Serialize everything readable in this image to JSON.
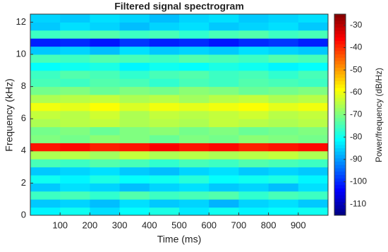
{
  "chart_data": {
    "type": "heatmap",
    "title": "Filtered signal spectrogram",
    "x_label": "Time (ms)",
    "y_label": "Frequency (kHz)",
    "colorbar_label": "Power/frequency (dB/Hz)",
    "colormap": "jet",
    "x": [
      50,
      150,
      250,
      350,
      450,
      550,
      650,
      750,
      850,
      950
    ],
    "y": [
      0.25,
      0.75,
      1.25,
      1.75,
      2.25,
      2.75,
      3.25,
      3.75,
      4.25,
      4.75,
      5.25,
      5.75,
      6.25,
      6.75,
      7.25,
      7.75,
      8.25,
      8.75,
      9.25,
      9.75,
      10.25,
      10.75,
      11.25,
      11.75,
      12.25
    ],
    "z": [
      [
        -82,
        -80,
        -84,
        -81,
        -79,
        -83,
        -80,
        -82,
        -81,
        -80
      ],
      [
        -86,
        -85,
        -87,
        -84,
        -86,
        -85,
        -88,
        -85,
        -84,
        -86
      ],
      [
        -76,
        -75,
        -77,
        -74,
        -76,
        -75,
        -74,
        -77,
        -75,
        -76
      ],
      [
        -86,
        -84,
        -85,
        -87,
        -85,
        -84,
        -86,
        -85,
        -87,
        -84
      ],
      [
        -80,
        -82,
        -79,
        -81,
        -80,
        -78,
        -81,
        -80,
        -79,
        -82
      ],
      [
        -86,
        -85,
        -84,
        -86,
        -87,
        -85,
        -84,
        -86,
        -85,
        -86
      ],
      [
        -75,
        -76,
        -74,
        -75,
        -77,
        -75,
        -76,
        -74,
        -75,
        -76
      ],
      [
        -66,
        -65,
        -67,
        -64,
        -66,
        -65,
        -66,
        -65,
        -64,
        -66
      ],
      [
        -38,
        -37,
        -39,
        -38,
        -36,
        -38,
        -37,
        -39,
        -38,
        -37
      ],
      [
        -70,
        -71,
        -69,
        -70,
        -72,
        -70,
        -71,
        -69,
        -70,
        -71
      ],
      [
        -71,
        -70,
        -72,
        -70,
        -69,
        -71,
        -70,
        -72,
        -71,
        -70
      ],
      [
        -66,
        -65,
        -64,
        -66,
        -65,
        -66,
        -64,
        -65,
        -66,
        -65
      ],
      [
        -64,
        -65,
        -63,
        -66,
        -64,
        -65,
        -64,
        -63,
        -65,
        -64
      ],
      [
        -60,
        -61,
        -59,
        -62,
        -60,
        -61,
        -60,
        -59,
        -61,
        -60
      ],
      [
        -66,
        -65,
        -64,
        -66,
        -65,
        -67,
        -65,
        -64,
        -66,
        -65
      ],
      [
        -71,
        -70,
        -72,
        -70,
        -71,
        -69,
        -70,
        -72,
        -71,
        -70
      ],
      [
        -75,
        -76,
        -74,
        -75,
        -77,
        -75,
        -76,
        -74,
        -75,
        -76
      ],
      [
        -76,
        -74,
        -75,
        -77,
        -75,
        -74,
        -76,
        -75,
        -77,
        -75
      ],
      [
        -81,
        -80,
        -79,
        -82,
        -80,
        -81,
        -79,
        -80,
        -82,
        -81
      ],
      [
        -75,
        -76,
        -74,
        -75,
        -76,
        -74,
        -75,
        -76,
        -74,
        -75
      ],
      [
        -86,
        -85,
        -87,
        -84,
        -86,
        -85,
        -86,
        -84,
        -85,
        -86
      ],
      [
        -101,
        -100,
        -102,
        -99,
        -101,
        -100,
        -102,
        -100,
        -99,
        -101
      ],
      [
        -76,
        -75,
        -74,
        -76,
        -75,
        -77,
        -75,
        -74,
        -76,
        -75
      ],
      [
        -86,
        -84,
        -85,
        -87,
        -85,
        -84,
        -86,
        -85,
        -84,
        -86
      ],
      [
        -85,
        -86,
        -84,
        -85,
        -87,
        -85,
        -84,
        -86,
        -85,
        -84
      ]
    ],
    "xlim": [
      0,
      1000
    ],
    "ylim": [
      0,
      12.5
    ],
    "clim": [
      -115,
      -25
    ],
    "xticks": [
      100,
      200,
      300,
      400,
      500,
      600,
      700,
      800,
      900
    ],
    "yticks": [
      0,
      2,
      4,
      6,
      8,
      10,
      12
    ],
    "cticks": [
      -110,
      -100,
      -90,
      -80,
      -70,
      -60,
      -50,
      -40,
      -30
    ]
  }
}
